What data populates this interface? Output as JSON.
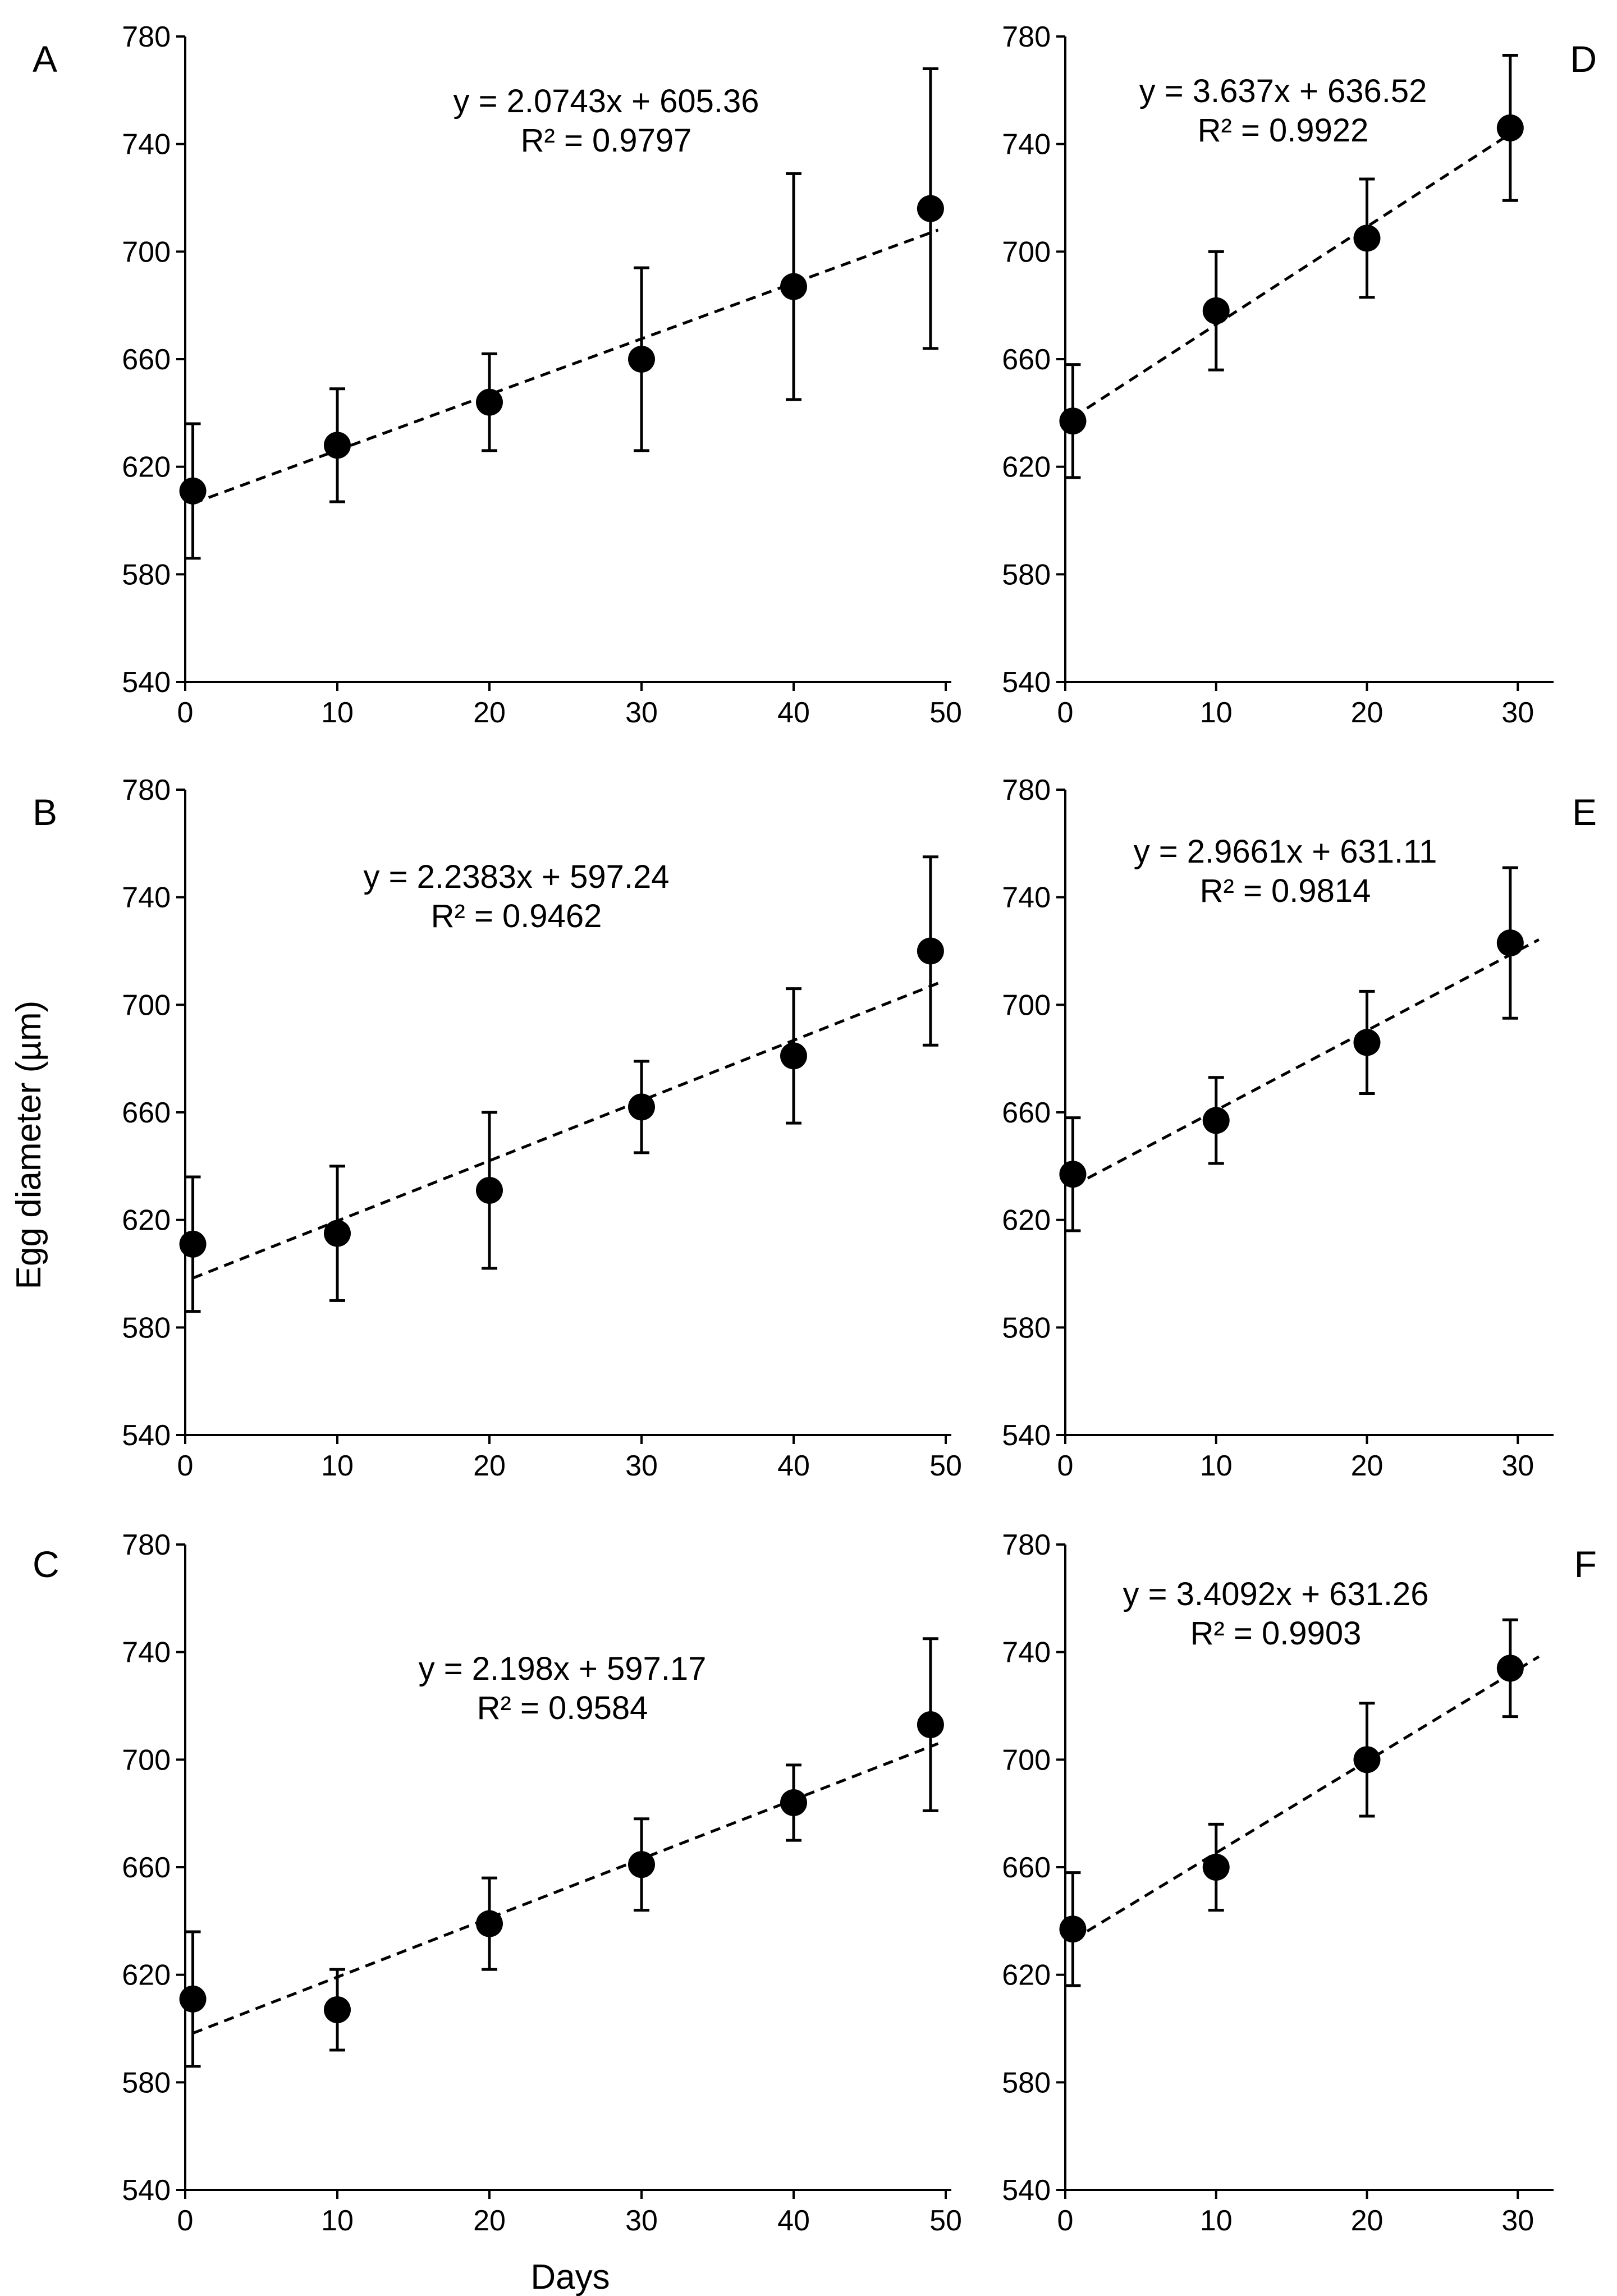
{
  "figure": {
    "ylabel": "Egg diameter (µm)",
    "xlabel": "Days"
  },
  "chart_data": [
    {
      "panel": "A",
      "type": "scatter",
      "x": [
        0,
        10,
        20,
        30,
        40,
        49
      ],
      "y": [
        611,
        628,
        644,
        660,
        687,
        716
      ],
      "err": [
        25,
        21,
        18,
        34,
        42,
        52
      ],
      "fit": {
        "slope": 2.0743,
        "intercept": 605.36
      },
      "equation": "y = 2.0743x + 605.36",
      "r2": "R² = 0.9797",
      "xlim": [
        0,
        50
      ],
      "ylim": [
        540,
        780
      ],
      "xticks": [
        "0",
        "10",
        "20",
        "30",
        "40",
        "50"
      ],
      "yticks": [
        "540",
        "580",
        "620",
        "660",
        "700",
        "740",
        "780"
      ]
    },
    {
      "panel": "B",
      "type": "scatter",
      "x": [
        0,
        10,
        20,
        30,
        40,
        49
      ],
      "y": [
        611,
        615,
        631,
        662,
        681,
        720
      ],
      "err": [
        25,
        25,
        29,
        17,
        25,
        35
      ],
      "fit": {
        "slope": 2.2383,
        "intercept": 597.24
      },
      "equation": "y = 2.2383x + 597.24",
      "r2": "R² = 0.9462",
      "xlim": [
        0,
        50
      ],
      "ylim": [
        540,
        780
      ],
      "xticks": [
        "0",
        "10",
        "20",
        "30",
        "40",
        "50"
      ],
      "yticks": [
        "540",
        "580",
        "620",
        "660",
        "700",
        "740",
        "780"
      ]
    },
    {
      "panel": "C",
      "type": "scatter",
      "x": [
        0,
        10,
        20,
        30,
        40,
        49
      ],
      "y": [
        611,
        607,
        639,
        661,
        684,
        713
      ],
      "err": [
        25,
        15,
        17,
        17,
        14,
        32
      ],
      "fit": {
        "slope": 2.198,
        "intercept": 597.17
      },
      "equation": "y = 2.198x + 597.17",
      "r2": "R² = 0.9584",
      "xlim": [
        0,
        50
      ],
      "ylim": [
        540,
        780
      ],
      "xticks": [
        "0",
        "10",
        "20",
        "30",
        "40",
        "50"
      ],
      "yticks": [
        "540",
        "580",
        "620",
        "660",
        "700",
        "740",
        "780"
      ]
    },
    {
      "panel": "D",
      "type": "scatter",
      "x": [
        0,
        10,
        20,
        29.5
      ],
      "y": [
        637,
        678,
        705,
        746
      ],
      "err": [
        21,
        22,
        22,
        27
      ],
      "fit": {
        "slope": 3.637,
        "intercept": 636.52
      },
      "equation": "y = 3.637x + 636.52",
      "r2": "R² = 0.9922",
      "xlim": [
        0,
        32
      ],
      "ylim": [
        540,
        780
      ],
      "xticks": [
        "0",
        "10",
        "20",
        "30"
      ],
      "yticks": [
        "540",
        "580",
        "620",
        "660",
        "700",
        "740",
        "780"
      ]
    },
    {
      "panel": "E",
      "type": "scatter",
      "x": [
        0,
        10,
        20,
        29.5
      ],
      "y": [
        637,
        657,
        686,
        723
      ],
      "err": [
        21,
        16,
        19,
        28
      ],
      "fit": {
        "slope": 2.9661,
        "intercept": 631.11
      },
      "equation": "y = 2.9661x + 631.11",
      "r2": "R² = 0.9814",
      "xlim": [
        0,
        32
      ],
      "ylim": [
        540,
        780
      ],
      "xticks": [
        "0",
        "10",
        "20",
        "30"
      ],
      "yticks": [
        "540",
        "580",
        "620",
        "660",
        "700",
        "740",
        "780"
      ]
    },
    {
      "panel": "F",
      "type": "scatter",
      "x": [
        0,
        10,
        20,
        29.5
      ],
      "y": [
        637,
        660,
        700,
        734
      ],
      "err": [
        21,
        16,
        21,
        18
      ],
      "fit": {
        "slope": 3.4092,
        "intercept": 631.26
      },
      "equation": "y = 3.4092x + 631.26",
      "r2": "R² = 0.9903",
      "xlim": [
        0,
        32
      ],
      "ylim": [
        540,
        780
      ],
      "xticks": [
        "0",
        "10",
        "20",
        "30"
      ],
      "yticks": [
        "540",
        "580",
        "620",
        "660",
        "700",
        "740",
        "780"
      ]
    }
  ]
}
